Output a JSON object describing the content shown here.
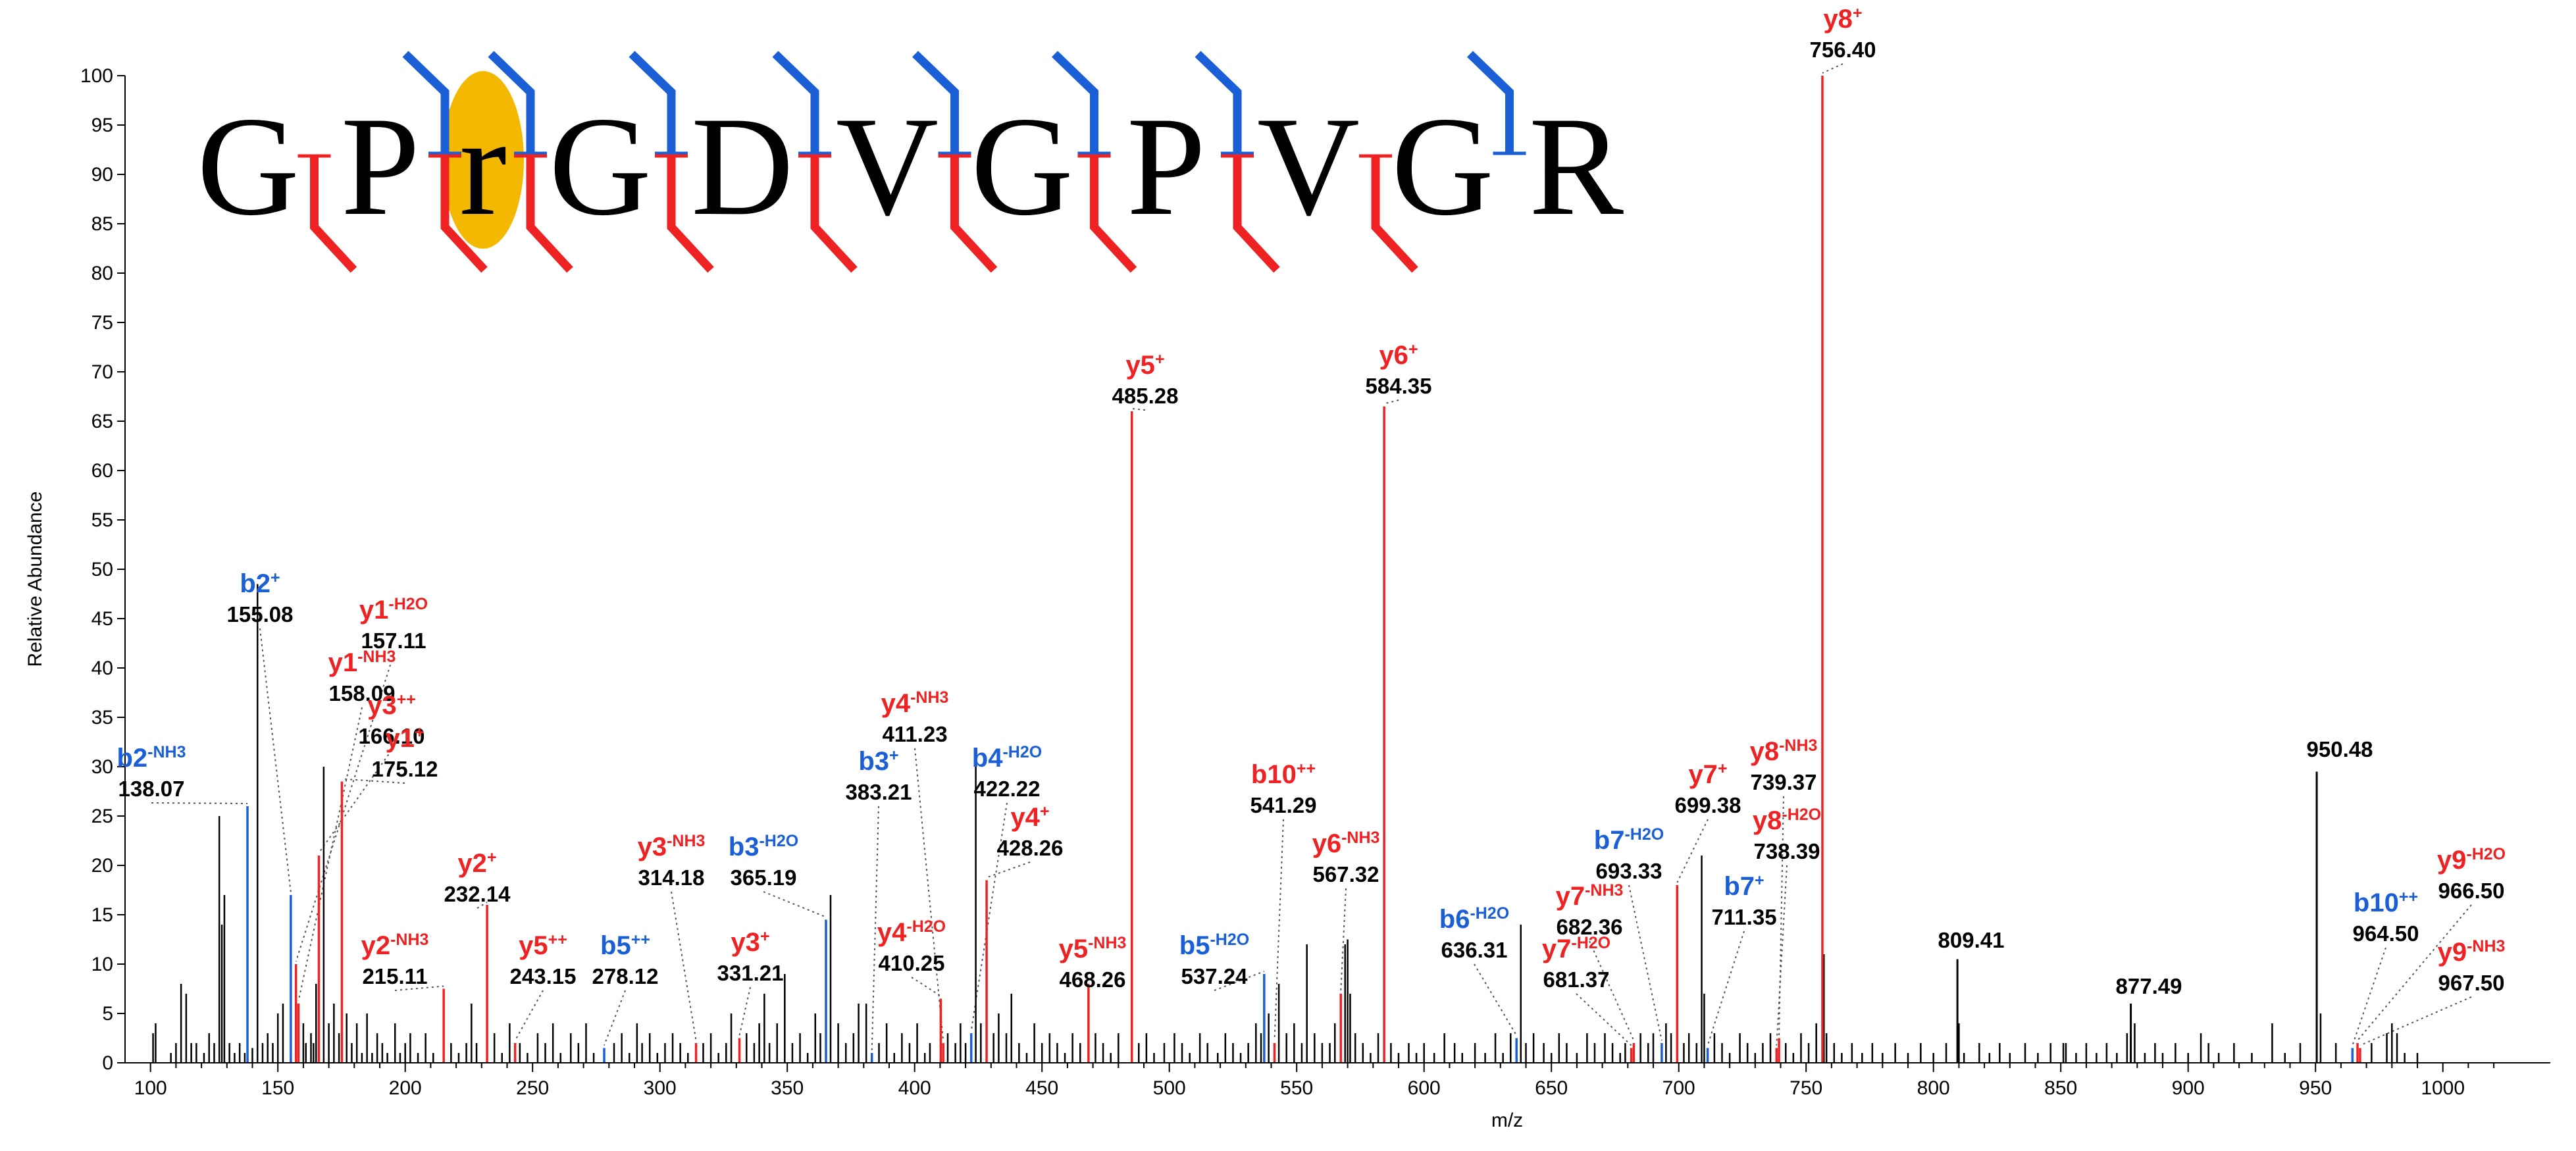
{
  "colors": {
    "b_ion": "#1a5fd6",
    "y_ion": "#ee2222",
    "unassigned": "#000000",
    "highlight": "#f5b800",
    "guide": "#555555"
  },
  "chart_data": {
    "type": "bar",
    "title": "",
    "xlabel": "m/z",
    "ylabel": "Relative Abundance",
    "xlim": [
      90,
      1030
    ],
    "ylim": [
      0,
      100
    ],
    "x_ticks": [
      100,
      150,
      200,
      250,
      300,
      350,
      400,
      450,
      500,
      550,
      600,
      650,
      700,
      750,
      800,
      850,
      900,
      950,
      1000
    ],
    "y_ticks": [
      0,
      5,
      10,
      15,
      20,
      25,
      30,
      35,
      40,
      45,
      50,
      55,
      60,
      65,
      70,
      75,
      80,
      85,
      90,
      95,
      100
    ],
    "sequence": {
      "residues": [
        "G",
        "P",
        "r",
        "G",
        "D",
        "V",
        "G",
        "P",
        "V",
        "G",
        "R"
      ],
      "modified_index": 2,
      "b_cleavages": [
        2,
        3,
        4,
        5,
        6,
        7,
        8,
        10
      ],
      "y_cleavages": [
        1,
        2,
        3,
        4,
        5,
        6,
        7,
        8,
        9
      ]
    },
    "annotated_peaks": [
      {
        "ion": "b2",
        "sup": "-NH3",
        "mz": "138.07",
        "x": 138.07,
        "y": 26,
        "series": "b"
      },
      {
        "ion": "b2",
        "sup": "+",
        "mz": "155.08",
        "x": 155.08,
        "y": 17,
        "series": "b"
      },
      {
        "ion": "y1",
        "sup": "-H2O",
        "mz": "157.11",
        "x": 157.11,
        "y": 10,
        "series": "y"
      },
      {
        "ion": "y1",
        "sup": "-NH3",
        "mz": "158.09",
        "x": 158.09,
        "y": 6,
        "series": "y"
      },
      {
        "ion": "y3",
        "sup": "++",
        "mz": "166.10",
        "x": 166.1,
        "y": 21,
        "series": "y"
      },
      {
        "ion": "y1",
        "sup": "+",
        "mz": "175.12",
        "x": 175.12,
        "y": 28.5,
        "series": "y"
      },
      {
        "ion": "y2",
        "sup": "-NH3",
        "mz": "215.11",
        "x": 215.11,
        "y": 7.5,
        "series": "y"
      },
      {
        "ion": "y2",
        "sup": "+",
        "mz": "232.14",
        "x": 232.14,
        "y": 16,
        "series": "y"
      },
      {
        "ion": "y5",
        "sup": "++",
        "mz": "243.15",
        "x": 243.15,
        "y": 2,
        "series": "y"
      },
      {
        "ion": "b5",
        "sup": "++",
        "mz": "278.12",
        "x": 278.12,
        "y": 1.5,
        "series": "b"
      },
      {
        "ion": "y3",
        "sup": "-NH3",
        "mz": "314.18",
        "x": 314.18,
        "y": 2,
        "series": "y"
      },
      {
        "ion": "y3",
        "sup": "+",
        "mz": "331.21",
        "x": 331.21,
        "y": 2.5,
        "series": "y"
      },
      {
        "ion": "b3",
        "sup": "-H2O",
        "mz": "365.19",
        "x": 365.19,
        "y": 14.5,
        "series": "b"
      },
      {
        "ion": "b3",
        "sup": "+",
        "mz": "383.21",
        "x": 383.21,
        "y": 1,
        "series": "b"
      },
      {
        "ion": "y4",
        "sup": "-H2O",
        "mz": "410.25",
        "x": 410.25,
        "y": 6.5,
        "series": "y"
      },
      {
        "ion": "y4",
        "sup": "-NH3",
        "mz": "411.23",
        "x": 411.23,
        "y": 2,
        "series": "y"
      },
      {
        "ion": "b4",
        "sup": "-H2O",
        "mz": "422.22",
        "x": 422.22,
        "y": 3,
        "series": "b"
      },
      {
        "ion": "y4",
        "sup": "+",
        "mz": "428.26",
        "x": 428.26,
        "y": 18.5,
        "series": "y"
      },
      {
        "ion": "y5",
        "sup": "-NH3",
        "mz": "468.26",
        "x": 468.26,
        "y": 8,
        "series": "y"
      },
      {
        "ion": "y5",
        "sup": "+",
        "mz": "485.28",
        "x": 485.28,
        "y": 66,
        "series": "y"
      },
      {
        "ion": "b5",
        "sup": "-H2O",
        "mz": "537.24",
        "x": 537.24,
        "y": 9,
        "series": "b"
      },
      {
        "ion": "b10",
        "sup": "++",
        "mz": "541.29",
        "x": 541.29,
        "y": 2,
        "series": "y"
      },
      {
        "ion": "y6",
        "sup": "-NH3",
        "mz": "567.32",
        "x": 567.32,
        "y": 7,
        "series": "y"
      },
      {
        "ion": "y6",
        "sup": "+",
        "mz": "584.35",
        "x": 584.35,
        "y": 66.5,
        "series": "y"
      },
      {
        "ion": "b6",
        "sup": "-H2O",
        "mz": "636.31",
        "x": 636.31,
        "y": 2.5,
        "series": "b"
      },
      {
        "ion": "y7",
        "sup": "-H2O",
        "mz": "681.37",
        "x": 681.37,
        "y": 1.5,
        "series": "y"
      },
      {
        "ion": "y7",
        "sup": "-NH3",
        "mz": "682.36",
        "x": 682.36,
        "y": 2,
        "series": "y"
      },
      {
        "ion": "b7",
        "sup": "-H2O",
        "mz": "693.33",
        "x": 693.33,
        "y": 2,
        "series": "b"
      },
      {
        "ion": "y7",
        "sup": "+",
        "mz": "699.38",
        "x": 699.38,
        "y": 18,
        "series": "y"
      },
      {
        "ion": "b7",
        "sup": "+",
        "mz": "711.35",
        "x": 711.35,
        "y": 1.5,
        "series": "b"
      },
      {
        "ion": "y8",
        "sup": "-H2O",
        "mz": "738.39",
        "x": 738.39,
        "y": 1.5,
        "series": "y"
      },
      {
        "ion": "y8",
        "sup": "-NH3",
        "mz": "739.37",
        "x": 739.37,
        "y": 2.5,
        "series": "y"
      },
      {
        "ion": "y8",
        "sup": "+",
        "mz": "756.40",
        "x": 756.4,
        "y": 100,
        "series": "y"
      },
      {
        "ion": "b10",
        "sup": "++",
        "mz": "964.50",
        "x": 964.5,
        "y": 1.5,
        "series": "b"
      },
      {
        "ion": "y9",
        "sup": "-H2O",
        "mz": "966.50",
        "x": 966.5,
        "y": 2,
        "series": "y"
      },
      {
        "ion": "y9",
        "sup": "-NH3",
        "mz": "967.50",
        "x": 967.5,
        "y": 1.5,
        "series": "y"
      }
    ],
    "unassigned_labeled_peaks": [
      {
        "mz": "809.41",
        "x": 809.41,
        "y": 10.5
      },
      {
        "mz": "877.49",
        "x": 877.49,
        "y": 6
      },
      {
        "mz": "950.48",
        "x": 950.48,
        "y": 29.5
      }
    ],
    "unassigned_peaks": [
      [
        101,
        3
      ],
      [
        102,
        4
      ],
      [
        108,
        1
      ],
      [
        110,
        2
      ],
      [
        112,
        8
      ],
      [
        114,
        7
      ],
      [
        116,
        2
      ],
      [
        118,
        2
      ],
      [
        121,
        1
      ],
      [
        123,
        3
      ],
      [
        125,
        2
      ],
      [
        127,
        25
      ],
      [
        128,
        14
      ],
      [
        129,
        17
      ],
      [
        131,
        2
      ],
      [
        133,
        1
      ],
      [
        135,
        2
      ],
      [
        137,
        1
      ],
      [
        140,
        1.5
      ],
      [
        142,
        48.5
      ],
      [
        144,
        2
      ],
      [
        146,
        3
      ],
      [
        148,
        2
      ],
      [
        150,
        5
      ],
      [
        152,
        6
      ],
      [
        160,
        4
      ],
      [
        161,
        2
      ],
      [
        163,
        3
      ],
      [
        164,
        2
      ],
      [
        165,
        8
      ],
      [
        168,
        30
      ],
      [
        170,
        4
      ],
      [
        172,
        6
      ],
      [
        174,
        3
      ],
      [
        177,
        5
      ],
      [
        179,
        2
      ],
      [
        181,
        4
      ],
      [
        183,
        1
      ],
      [
        185,
        5
      ],
      [
        187,
        1
      ],
      [
        189,
        3
      ],
      [
        191,
        2
      ],
      [
        193,
        1
      ],
      [
        196,
        4
      ],
      [
        198,
        1
      ],
      [
        200,
        2
      ],
      [
        202,
        3
      ],
      [
        205,
        1
      ],
      [
        208,
        3
      ],
      [
        211,
        1
      ],
      [
        218,
        2
      ],
      [
        221,
        1
      ],
      [
        224,
        2
      ],
      [
        226,
        6
      ],
      [
        228,
        2
      ],
      [
        235,
        3
      ],
      [
        238,
        1
      ],
      [
        241,
        4
      ],
      [
        245,
        2
      ],
      [
        248,
        1
      ],
      [
        252,
        3
      ],
      [
        255,
        2
      ],
      [
        258,
        4
      ],
      [
        261,
        1
      ],
      [
        265,
        3
      ],
      [
        268,
        2
      ],
      [
        271,
        4
      ],
      [
        274,
        1
      ],
      [
        282,
        2
      ],
      [
        285,
        3
      ],
      [
        288,
        1
      ],
      [
        291,
        4
      ],
      [
        293,
        2
      ],
      [
        296,
        3
      ],
      [
        299,
        1
      ],
      [
        302,
        2
      ],
      [
        305,
        3
      ],
      [
        308,
        2
      ],
      [
        311,
        1
      ],
      [
        317,
        2
      ],
      [
        320,
        3
      ],
      [
        323,
        1
      ],
      [
        326,
        2
      ],
      [
        328,
        5
      ],
      [
        334,
        3
      ],
      [
        337,
        2
      ],
      [
        339,
        4
      ],
      [
        341,
        7
      ],
      [
        343,
        2
      ],
      [
        346,
        4
      ],
      [
        349,
        9
      ],
      [
        352,
        2
      ],
      [
        355,
        3
      ],
      [
        358,
        1
      ],
      [
        361,
        5
      ],
      [
        363,
        3
      ],
      [
        367,
        17
      ],
      [
        370,
        4
      ],
      [
        373,
        2
      ],
      [
        376,
        3
      ],
      [
        378,
        6
      ],
      [
        381,
        6
      ],
      [
        386,
        2
      ],
      [
        389,
        4
      ],
      [
        392,
        1
      ],
      [
        395,
        3
      ],
      [
        398,
        2
      ],
      [
        401,
        4
      ],
      [
        404,
        1
      ],
      [
        406,
        2
      ],
      [
        413,
        3
      ],
      [
        416,
        2
      ],
      [
        418,
        4
      ],
      [
        420,
        2
      ],
      [
        424,
        30
      ],
      [
        426,
        4
      ],
      [
        431,
        3
      ],
      [
        433,
        5
      ],
      [
        436,
        3
      ],
      [
        438,
        7
      ],
      [
        441,
        2
      ],
      [
        444,
        1
      ],
      [
        447,
        4
      ],
      [
        450,
        2
      ],
      [
        453,
        3
      ],
      [
        456,
        2
      ],
      [
        459,
        1
      ],
      [
        462,
        3
      ],
      [
        465,
        2
      ],
      [
        471,
        3
      ],
      [
        474,
        2
      ],
      [
        477,
        1
      ],
      [
        480,
        3
      ],
      [
        488,
        2
      ],
      [
        491,
        3
      ],
      [
        494,
        1
      ],
      [
        498,
        2
      ],
      [
        502,
        3
      ],
      [
        505,
        2
      ],
      [
        508,
        1
      ],
      [
        512,
        3
      ],
      [
        515,
        2
      ],
      [
        519,
        1
      ],
      [
        522,
        3
      ],
      [
        525,
        2
      ],
      [
        528,
        1
      ],
      [
        531,
        2
      ],
      [
        534,
        4
      ],
      [
        536,
        3
      ],
      [
        539,
        5
      ],
      [
        543,
        8
      ],
      [
        546,
        3
      ],
      [
        549,
        4
      ],
      [
        552,
        2
      ],
      [
        554,
        12
      ],
      [
        557,
        3
      ],
      [
        560,
        2
      ],
      [
        563,
        2
      ],
      [
        565,
        4
      ],
      [
        569,
        12
      ],
      [
        570,
        12.5
      ],
      [
        571,
        7
      ],
      [
        573,
        3
      ],
      [
        576,
        2
      ],
      [
        579,
        1
      ],
      [
        582,
        3
      ],
      [
        587,
        2
      ],
      [
        590,
        1
      ],
      [
        594,
        2
      ],
      [
        597,
        1
      ],
      [
        600,
        2
      ],
      [
        604,
        1
      ],
      [
        608,
        3
      ],
      [
        612,
        2
      ],
      [
        615,
        1
      ],
      [
        620,
        2
      ],
      [
        624,
        1
      ],
      [
        628,
        3
      ],
      [
        631,
        1
      ],
      [
        634,
        3
      ],
      [
        638,
        14
      ],
      [
        640,
        2
      ],
      [
        643,
        3
      ],
      [
        647,
        2
      ],
      [
        650,
        1
      ],
      [
        653,
        3
      ],
      [
        656,
        2
      ],
      [
        660,
        1
      ],
      [
        664,
        3
      ],
      [
        667,
        2
      ],
      [
        671,
        3
      ],
      [
        674,
        2
      ],
      [
        677,
        1
      ],
      [
        679,
        2
      ],
      [
        685,
        3
      ],
      [
        688,
        2
      ],
      [
        690,
        3
      ],
      [
        695,
        4
      ],
      [
        697,
        3
      ],
      [
        702,
        2
      ],
      [
        704,
        3
      ],
      [
        707,
        2
      ],
      [
        709,
        21
      ],
      [
        710,
        7
      ],
      [
        714,
        3
      ],
      [
        717,
        2
      ],
      [
        720,
        1
      ],
      [
        724,
        3
      ],
      [
        727,
        2
      ],
      [
        730,
        1
      ],
      [
        733,
        2
      ],
      [
        736,
        3
      ],
      [
        742,
        2
      ],
      [
        745,
        1
      ],
      [
        748,
        3
      ],
      [
        751,
        2
      ],
      [
        754,
        4
      ],
      [
        757,
        11
      ],
      [
        758,
        3
      ],
      [
        761,
        2
      ],
      [
        764,
        1
      ],
      [
        768,
        2
      ],
      [
        772,
        1
      ],
      [
        776,
        2
      ],
      [
        780,
        1
      ],
      [
        785,
        2
      ],
      [
        790,
        1
      ],
      [
        795,
        2
      ],
      [
        800,
        1
      ],
      [
        805,
        2
      ],
      [
        810,
        4
      ],
      [
        812,
        1
      ],
      [
        818,
        2
      ],
      [
        822,
        1
      ],
      [
        826,
        2
      ],
      [
        830,
        1
      ],
      [
        836,
        2
      ],
      [
        841,
        1
      ],
      [
        846,
        2
      ],
      [
        851,
        2
      ],
      [
        852,
        2
      ],
      [
        856,
        1
      ],
      [
        860,
        2
      ],
      [
        864,
        1
      ],
      [
        868,
        2
      ],
      [
        872,
        1
      ],
      [
        876,
        3
      ],
      [
        879,
        4
      ],
      [
        883,
        1
      ],
      [
        887,
        2
      ],
      [
        890,
        1
      ],
      [
        895,
        2
      ],
      [
        900,
        1
      ],
      [
        905,
        3
      ],
      [
        908,
        2
      ],
      [
        912,
        1
      ],
      [
        918,
        2
      ],
      [
        925,
        1
      ],
      [
        933,
        4
      ],
      [
        938,
        1
      ],
      [
        944,
        2
      ],
      [
        952,
        5
      ],
      [
        958,
        2
      ],
      [
        972,
        2
      ],
      [
        978,
        3
      ],
      [
        980,
        4
      ],
      [
        982,
        3
      ],
      [
        985,
        1
      ],
      [
        990,
        1
      ]
    ]
  }
}
